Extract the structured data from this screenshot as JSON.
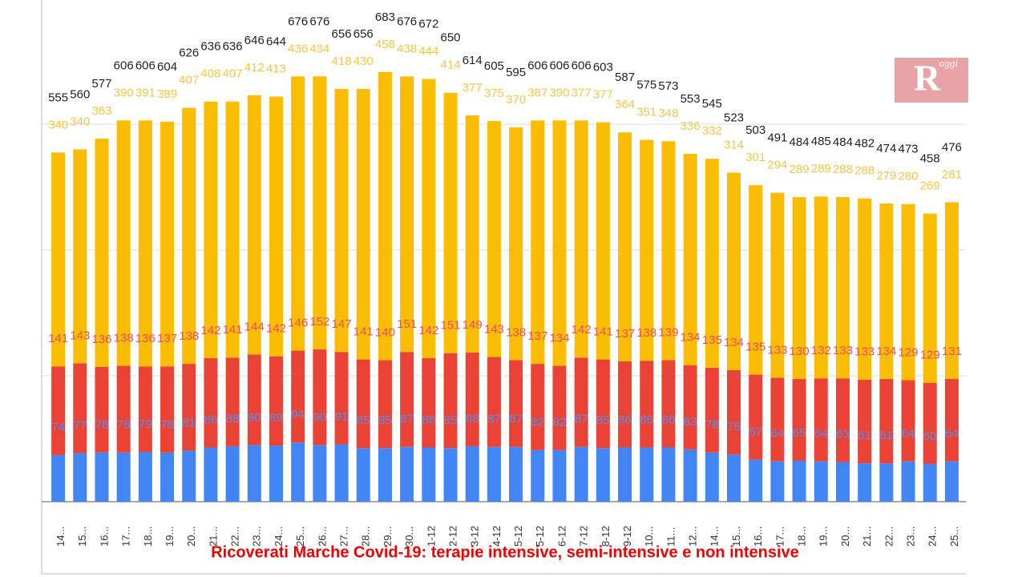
{
  "chart_data": {
    "type": "stacked_bar",
    "title": "Ricoverati Marche Covid-19: terapie intensive, semi-intensive e non intensive",
    "categories": [
      "14...",
      "15...",
      "16...",
      "17...",
      "18...",
      "19...",
      "20...",
      "21...",
      "22...",
      "23...",
      "24...",
      "25...",
      "26...",
      "27...",
      "28...",
      "29...",
      "30...",
      "1-12",
      "2-12",
      "3-12",
      "4-12",
      "5-12",
      "5-12",
      "6-12",
      "7-12",
      "8-12",
      "9-12",
      "10...",
      "11...",
      "12...",
      "14...",
      "15...",
      "16...",
      "17...",
      "18...",
      "19...",
      "20...",
      "21...",
      "22...",
      "23...",
      "24...",
      "25..."
    ],
    "series": [
      {
        "color": "#4285f4",
        "label_color": "#5b8def",
        "values": [
          74,
          77,
          78,
          78,
          79,
          78,
          81,
          86,
          88,
          90,
          89,
          94,
          90,
          91,
          85,
          85,
          87,
          86,
          85,
          88,
          87,
          87,
          82,
          82,
          87,
          85,
          86,
          86,
          86,
          83,
          78,
          75,
          67,
          64,
          65,
          64,
          63,
          61,
          61,
          64,
          60,
          64
        ]
      },
      {
        "color": "#ea4335",
        "label_color": "#e8505a",
        "values": [
          141,
          143,
          136,
          138,
          136,
          137,
          138,
          142,
          141,
          144,
          142,
          146,
          152,
          147,
          141,
          140,
          151,
          142,
          151,
          149,
          143,
          138,
          137,
          134,
          142,
          141,
          137,
          138,
          139,
          134,
          135,
          134,
          135,
          133,
          130,
          132,
          133,
          133,
          134,
          129,
          129,
          131
        ]
      },
      {
        "color": "#fbbc04",
        "label_color": "#f7c544",
        "values": [
          340,
          340,
          363,
          390,
          391,
          389,
          407,
          408,
          407,
          412,
          413,
          436,
          434,
          418,
          430,
          458,
          438,
          444,
          414,
          377,
          375,
          370,
          387,
          390,
          377,
          377,
          364,
          351,
          348,
          336,
          332,
          314,
          301,
          294,
          289,
          289,
          288,
          288,
          279,
          280,
          269,
          281
        ]
      }
    ],
    "totals": [
      555,
      560,
      577,
      606,
      606,
      604,
      626,
      636,
      636,
      646,
      644,
      676,
      676,
      656,
      656,
      683,
      676,
      672,
      650,
      614,
      605,
      595,
      606,
      606,
      606,
      603,
      587,
      575,
      573,
      553,
      545,
      523,
      503,
      491,
      484,
      485,
      484,
      482,
      474,
      473,
      458,
      476
    ],
    "ylim": [
      0,
      800
    ],
    "yticks": [
      0,
      200,
      400,
      600
    ],
    "grid": true,
    "logo": {
      "letter": "R",
      "text": "oggi"
    }
  }
}
